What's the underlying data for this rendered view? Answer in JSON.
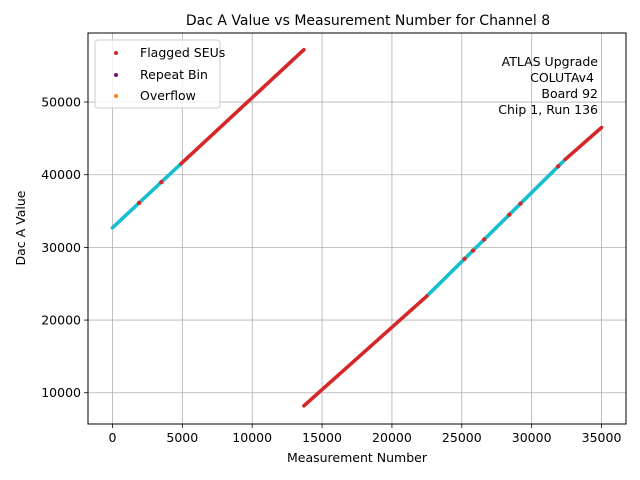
{
  "chart_data": {
    "type": "scatter",
    "title": "Dac A Value vs Measurement Number for Channel 8",
    "xlabel": "Measurement Number",
    "ylabel": "Dac A Value",
    "xlim": [
      -1750,
      36750
    ],
    "ylim": [
      5700,
      59500
    ],
    "xticks": [
      0,
      5000,
      10000,
      15000,
      20000,
      25000,
      30000,
      35000
    ],
    "yticks": [
      10000,
      20000,
      30000,
      40000,
      50000
    ],
    "grid": true,
    "legend_position": "top-left",
    "colors": {
      "flagged": "#d62728",
      "repeat": "#7b0c6b",
      "overflow": "#ff7f0e",
      "data": "#17becf"
    },
    "legend": [
      {
        "label": "Flagged SEUs",
        "color": "#d62728"
      },
      {
        "label": "Repeat Bin",
        "color": "#7b0c6b"
      },
      {
        "label": "Overflow",
        "color": "#ff7f0e"
      }
    ],
    "annotation_lines": [
      "ATLAS Upgrade",
      "COLUTAv4",
      "Board 92",
      "Chip 1, Run 136"
    ],
    "series": [
      {
        "name": "Flagged SEUs",
        "segments": [
          {
            "x": [
              4900,
              13700
            ],
            "y": [
              41500,
              57200
            ]
          },
          {
            "x": [
              13700,
              22500
            ],
            "y": [
              8200,
              23300
            ]
          },
          {
            "x": [
              32400,
              35000
            ],
            "y": [
              42100,
              46500
            ]
          }
        ],
        "scattered_x": [
          1900,
          3500,
          25200,
          25800,
          26600,
          28400,
          29200,
          31900
        ]
      },
      {
        "name": "data",
        "segments": [
          {
            "x": [
              0,
              4900
            ],
            "y": [
              32700,
              41500
            ]
          },
          {
            "x": [
              22500,
              32400
            ],
            "y": [
              23300,
              42100
            ]
          }
        ]
      }
    ]
  }
}
